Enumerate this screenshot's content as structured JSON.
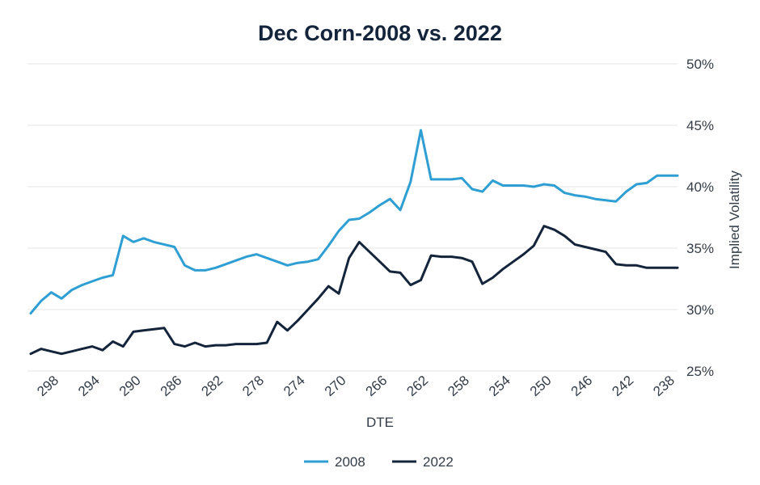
{
  "chart_data": {
    "type": "line",
    "title": "Dec Corn-2008 vs. 2022",
    "xlabel": "DTE",
    "ylabel": "Implied Volatility",
    "ylim": [
      25,
      50
    ],
    "xlim": [
      300,
      237
    ],
    "y_ticks": [
      "25%",
      "30%",
      "35%",
      "40%",
      "45%",
      "50%"
    ],
    "y_tick_values": [
      25,
      30,
      35,
      40,
      45,
      50
    ],
    "x_ticks": [
      "298",
      "294",
      "290",
      "286",
      "282",
      "278",
      "274",
      "270",
      "266",
      "262",
      "258",
      "254",
      "250",
      "246",
      "242",
      "238"
    ],
    "x_tick_values": [
      298,
      294,
      290,
      286,
      282,
      278,
      274,
      270,
      266,
      262,
      258,
      254,
      250,
      246,
      242,
      238
    ],
    "legend_position": "bottom-center",
    "series": [
      {
        "name": "2008",
        "color": "#2f9fd3",
        "x": [
          300,
          299,
          298,
          297,
          296,
          295,
          294,
          293,
          292,
          291,
          290,
          289,
          288,
          287,
          286,
          285,
          284,
          283,
          282,
          281,
          280,
          279,
          278,
          277,
          276,
          275,
          274,
          273,
          272,
          271,
          270,
          269,
          268,
          267,
          266,
          265,
          264,
          263,
          262,
          261,
          260,
          259,
          258,
          257,
          256,
          255,
          254,
          253,
          252,
          251,
          250,
          249,
          248,
          247,
          246,
          245,
          244,
          243,
          242,
          241,
          240,
          239,
          238,
          237
        ],
        "values": [
          29.7,
          30.7,
          31.4,
          30.9,
          31.6,
          32.0,
          32.3,
          32.6,
          32.8,
          36.0,
          35.5,
          35.8,
          35.5,
          35.3,
          35.1,
          33.6,
          33.2,
          33.2,
          33.4,
          33.7,
          34.0,
          34.3,
          34.5,
          34.2,
          33.9,
          33.6,
          33.8,
          33.9,
          34.1,
          35.2,
          36.4,
          37.3,
          37.4,
          37.9,
          38.5,
          39.0,
          38.1,
          40.4,
          44.6,
          40.6,
          40.6,
          40.6,
          40.7,
          39.8,
          39.6,
          40.5,
          40.1,
          40.1,
          40.1,
          40.0,
          40.2,
          40.1,
          39.5,
          39.3,
          39.2,
          39.0,
          38.9,
          38.8,
          39.6,
          40.2,
          40.3,
          40.9,
          40.9,
          40.9
        ]
      },
      {
        "name": "2022",
        "color": "#14243b",
        "x": [
          300,
          299,
          298,
          297,
          296,
          295,
          294,
          293,
          292,
          291,
          290,
          289,
          288,
          287,
          286,
          285,
          284,
          283,
          282,
          281,
          280,
          279,
          278,
          277,
          276,
          275,
          274,
          273,
          272,
          271,
          270,
          269,
          268,
          267,
          266,
          265,
          264,
          263,
          262,
          261,
          260,
          259,
          258,
          257,
          256,
          255,
          254,
          253,
          252,
          251,
          250,
          249,
          248,
          247,
          246,
          245,
          244,
          243,
          242,
          241,
          240,
          239,
          238,
          237
        ],
        "values": [
          26.4,
          26.8,
          26.6,
          26.4,
          26.6,
          26.8,
          27.0,
          26.7,
          27.4,
          27.0,
          28.2,
          28.3,
          28.4,
          28.5,
          27.2,
          27.0,
          27.3,
          27.0,
          27.1,
          27.1,
          27.2,
          27.2,
          27.2,
          27.3,
          29.0,
          28.3,
          29.1,
          30.0,
          30.9,
          31.9,
          31.3,
          34.2,
          35.5,
          34.7,
          33.9,
          33.1,
          33.0,
          32.0,
          32.4,
          34.4,
          34.3,
          34.3,
          34.2,
          33.9,
          32.1,
          32.6,
          33.3,
          33.9,
          34.5,
          35.2,
          36.8,
          36.5,
          36.0,
          35.3,
          35.1,
          34.9,
          34.7,
          33.7,
          33.6,
          33.6,
          33.4,
          33.4,
          33.4,
          33.4
        ]
      }
    ]
  }
}
